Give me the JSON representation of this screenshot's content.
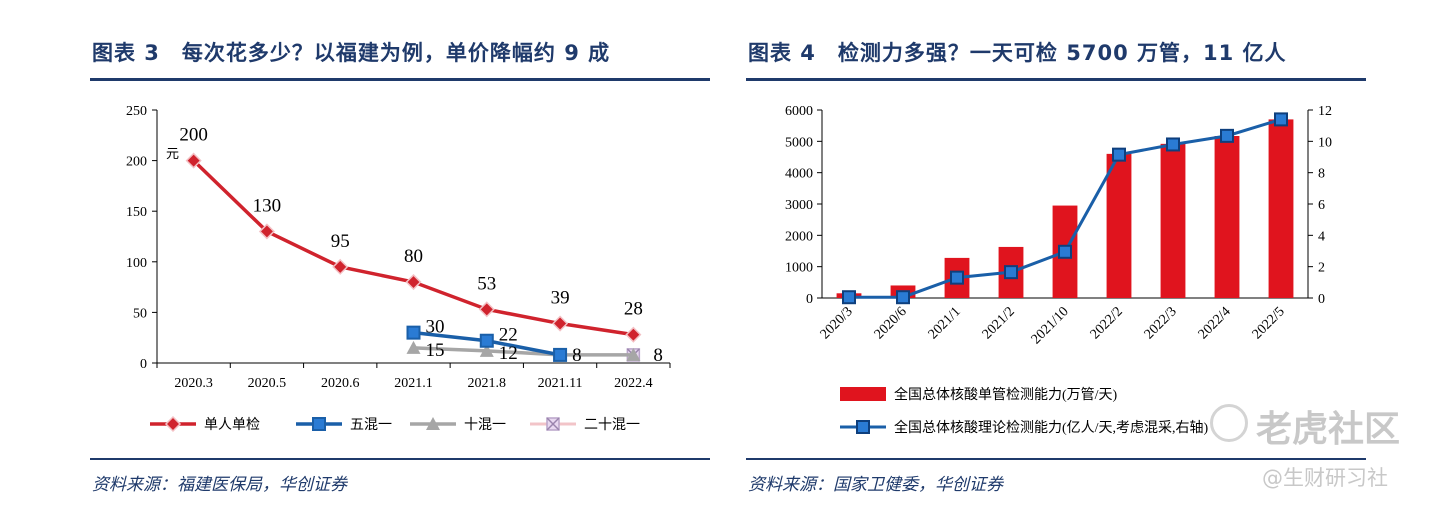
{
  "left": {
    "title": "图表 3　每次花多少？以福建为例，单价降幅约 9 成",
    "source": "资料来源：福建医保局，华创证券"
  },
  "right": {
    "title": "图表 4　检测力多强？一天可检 5700 万管，11 亿人",
    "source": "资料来源：国家卫健委，华创证券"
  },
  "watermark": {
    "brand": "老虎社区",
    "sub": "@生财研习社"
  },
  "chart_data": [
    {
      "type": "line",
      "unit_label": "元",
      "categories": [
        "2020.3",
        "2020.5",
        "2020.6",
        "2021.1",
        "2021.8",
        "2021.11",
        "2022.4"
      ],
      "ylim": [
        0,
        250
      ],
      "yticks": [
        0,
        50,
        100,
        150,
        200,
        250
      ],
      "legend_position": "bottom",
      "colors": {
        "s1": "#d0232d",
        "s2": "#1a5fa8",
        "s3": "#a6a6a6",
        "s4": "#f2c4c8"
      },
      "series": [
        {
          "name": "单人单检",
          "values": [
            200,
            130,
            95,
            80,
            53,
            39,
            28
          ],
          "labels": [
            "200",
            "130",
            "95",
            "80",
            "53",
            "39",
            "28"
          ]
        },
        {
          "name": "五混一",
          "values": [
            null,
            null,
            null,
            30,
            22,
            8,
            null
          ],
          "labels": [
            "",
            "",
            "",
            "30",
            "22",
            "8",
            ""
          ]
        },
        {
          "name": "十混一",
          "values": [
            null,
            null,
            null,
            15,
            12,
            8,
            8
          ],
          "labels": [
            "",
            "",
            "",
            "15",
            "12",
            "",
            ""
          ]
        },
        {
          "name": "二十混一",
          "values": [
            null,
            null,
            null,
            null,
            null,
            8,
            8
          ],
          "labels": [
            "",
            "",
            "",
            "",
            "",
            "",
            "8"
          ]
        }
      ]
    },
    {
      "type": "bar",
      "categories": [
        "2020/3",
        "2020/6",
        "2021/1",
        "2021/2",
        "2021/10",
        "2022/2",
        "2022/3",
        "2022/4",
        "2022/5"
      ],
      "ylim_left": [
        0,
        6000
      ],
      "yticks_left": [
        0,
        1000,
        2000,
        3000,
        4000,
        5000,
        6000
      ],
      "ylim_right": [
        0,
        12
      ],
      "yticks_right": [
        0,
        2,
        4,
        6,
        8,
        10,
        12
      ],
      "legend_position": "bottom",
      "colors": {
        "bar": "#e0141e",
        "line": "#1a5fa8"
      },
      "series": [
        {
          "name": "全国总体核酸单管检测能力(万管/天)",
          "type": "bar",
          "axis": "left",
          "values": [
            150,
            400,
            1280,
            1630,
            2950,
            4600,
            4920,
            5170,
            5700
          ]
        },
        {
          "name": "全国总体核酸理论检测能力(亿人/天,考虑混采,右轴)",
          "type": "line",
          "axis": "right",
          "values": [
            0.05,
            0.05,
            1.3,
            1.65,
            2.95,
            9.15,
            9.8,
            10.35,
            11.4
          ]
        }
      ]
    }
  ]
}
